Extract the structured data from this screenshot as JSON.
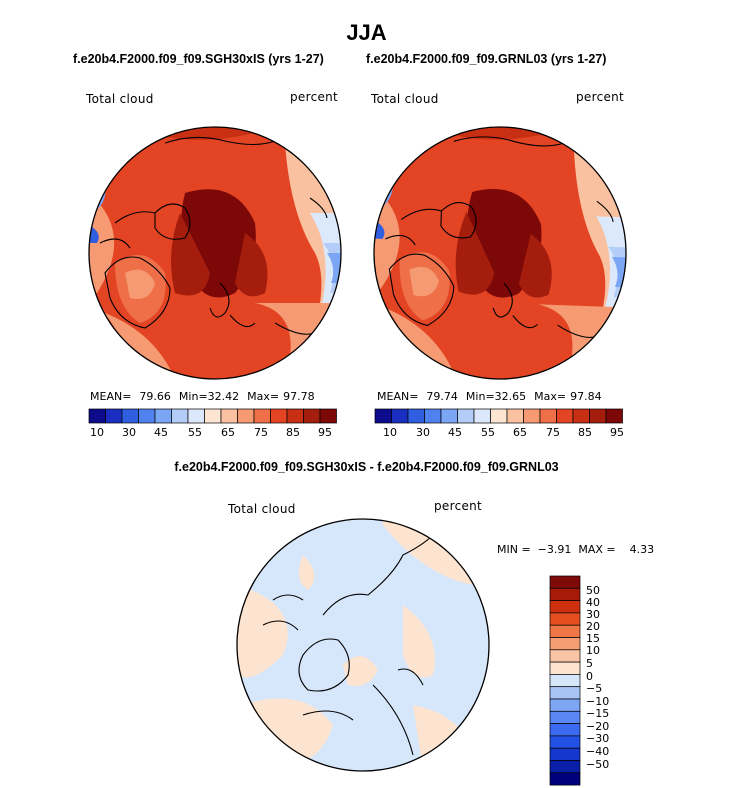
{
  "figure": {
    "title": "JJA",
    "colors": {
      "full_palette": [
        "#0b0b8c",
        "#1a2fc2",
        "#2f5fe0",
        "#4f82ee",
        "#7ba6f4",
        "#b4cdf8",
        "#dce8fb",
        "#fde5d3",
        "#f9c1a0",
        "#f59a73",
        "#ef7048",
        "#e34524",
        "#c92f12",
        "#a51d0c",
        "#7c0808"
      ],
      "diff_palette": [
        "#00007a",
        "#0a1fa8",
        "#1437cf",
        "#2251e6",
        "#3b6af0",
        "#5a87f2",
        "#7fa5f5",
        "#a8c4f7",
        "#d6e6fb",
        "#fde4d0",
        "#f9c4a5",
        "#f59e74",
        "#ef7745",
        "#e64e20",
        "#cf3110",
        "#a81a08",
        "#7f0a0a"
      ]
    }
  },
  "panels": [
    {
      "case_title": "f.e20b4.F2000.f09_f09.SGH30xIS (yrs 1-27)",
      "variable_label": "Total cloud",
      "units_label": "percent",
      "stats": {
        "mean_label": "MEAN=",
        "mean": "79.66",
        "min_label": "Min=",
        "min": "32.42",
        "max_label": "Max=",
        "max": "97.78"
      },
      "colorbar_labels": [
        "10",
        "30",
        "45",
        "55",
        "65",
        "75",
        "85",
        "95"
      ]
    },
    {
      "case_title": "f.e20b4.F2000.f09_f09.GRNL03 (yrs 1-27)",
      "variable_label": "Total cloud",
      "units_label": "percent",
      "stats": {
        "mean_label": "MEAN=",
        "mean": "79.74",
        "min_label": "Min=",
        "min": "32.65",
        "max_label": "Max=",
        "max": "97.84"
      },
      "colorbar_labels": [
        "10",
        "30",
        "45",
        "55",
        "65",
        "75",
        "85",
        "95"
      ]
    }
  ],
  "difference": {
    "title": "f.e20b4.F2000.f09_f09.SGH30xIS - f.e20b4.F2000.f09_f09.GRNL03",
    "variable_label": "Total cloud",
    "units_label": "percent",
    "stats_text": "MIN =  −3.91  MAX =    4.33",
    "colorbar_labels": [
      "50",
      "40",
      "30",
      "20",
      "15",
      "10",
      "5",
      "0",
      "−5",
      "−10",
      "−15",
      "−20",
      "−30",
      "−40",
      "−50"
    ]
  },
  "chart_data": [
    {
      "type": "heatmap",
      "projection": "north polar stereographic",
      "title": "f.e20b4.F2000.f09_f09.SGH30xIS (yrs 1-27)",
      "variable": "Total cloud",
      "units": "percent",
      "mean": 79.66,
      "min": 32.42,
      "max": 97.78,
      "colorbar_levels": [
        10,
        30,
        45,
        55,
        65,
        75,
        85,
        95
      ]
    },
    {
      "type": "heatmap",
      "projection": "north polar stereographic",
      "title": "f.e20b4.F2000.f09_f09.GRNL03 (yrs 1-27)",
      "variable": "Total cloud",
      "units": "percent",
      "mean": 79.74,
      "min": 32.65,
      "max": 97.84,
      "colorbar_levels": [
        10,
        30,
        45,
        55,
        65,
        75,
        85,
        95
      ]
    },
    {
      "type": "heatmap",
      "projection": "north polar stereographic",
      "title": "f.e20b4.F2000.f09_f09.SGH30xIS - f.e20b4.F2000.f09_f09.GRNL03",
      "variable": "Total cloud",
      "units": "percent",
      "min": -3.91,
      "max": 4.33,
      "colorbar_levels": [
        50,
        40,
        30,
        20,
        15,
        10,
        5,
        0,
        -5,
        -10,
        -15,
        -20,
        -30,
        -40,
        -50
      ]
    }
  ]
}
